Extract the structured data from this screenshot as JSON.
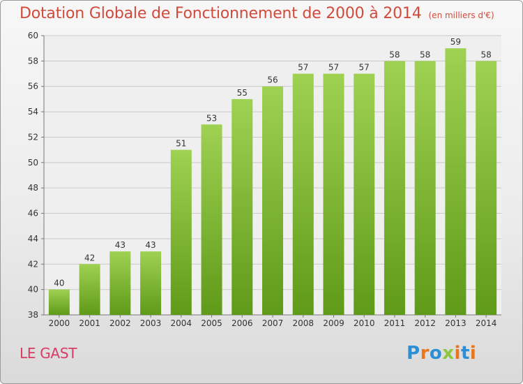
{
  "chart_data": {
    "type": "bar",
    "title": "Dotation Globale de Fonctionnement de 2000 à 2014",
    "unit_label": "(en milliers d'€)",
    "categories": [
      "2000",
      "2001",
      "2002",
      "2003",
      "2004",
      "2005",
      "2006",
      "2007",
      "2008",
      "2009",
      "2010",
      "2011",
      "2012",
      "2013",
      "2014"
    ],
    "values": [
      40,
      42,
      43,
      43,
      51,
      53,
      55,
      56,
      57,
      57,
      57,
      58,
      58,
      59,
      58
    ],
    "ylim": [
      38,
      60
    ],
    "yticks": [
      38,
      40,
      42,
      44,
      46,
      48,
      50,
      52,
      54,
      56,
      58,
      60
    ],
    "grid": true,
    "xlabel": "",
    "ylabel": "",
    "bar_color_top": "#9fd152",
    "bar_color_bottom": "#5f9a18",
    "title_color": "#d14b3c"
  },
  "footer": {
    "commune": "LE GAST",
    "logo_text": "Proxiti",
    "logo_colors": [
      "#2a8fd6",
      "#e8761e",
      "#2a8fd6",
      "#8cc63f",
      "#e8761e",
      "#2a8fd6",
      "#e8761e"
    ]
  }
}
